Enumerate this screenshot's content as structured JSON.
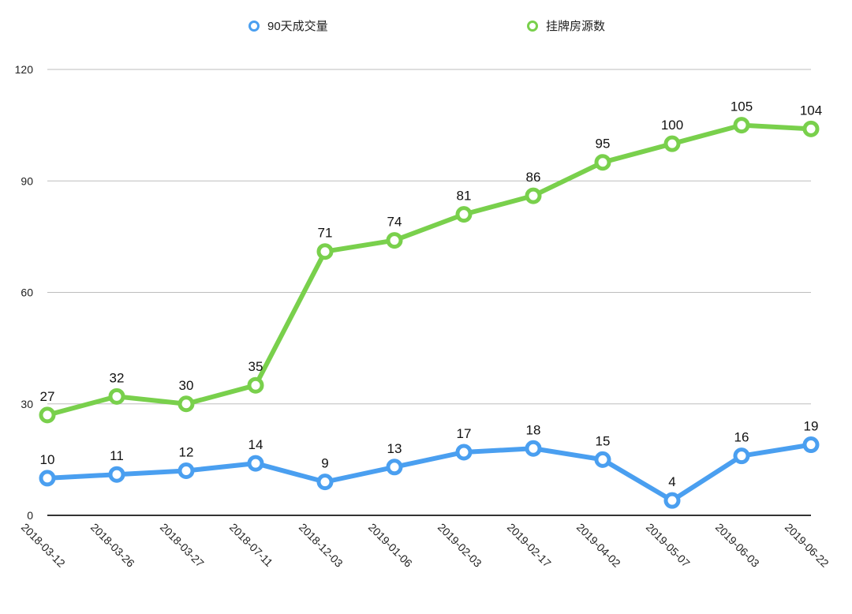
{
  "chart_data": {
    "type": "line",
    "title": "",
    "xlabel": "",
    "ylabel": "",
    "ylim": [
      0,
      120
    ],
    "yticks": [
      0,
      30,
      60,
      90,
      120
    ],
    "grid": true,
    "legend_position": "top",
    "categories": [
      "2018-03-12",
      "2018-03-26",
      "2018-03-27",
      "2018-07-11",
      "2018-12-03",
      "2019-01-06",
      "2019-02-03",
      "2019-02-17",
      "2019-04-02",
      "2019-05-07",
      "2019-06-03",
      "2019-06-22"
    ],
    "series": [
      {
        "name": "90天成交量",
        "color": "#4A9FF0",
        "values": [
          10,
          11,
          12,
          14,
          9,
          13,
          17,
          18,
          15,
          4,
          16,
          19
        ]
      },
      {
        "name": "挂牌房源数",
        "color": "#79D04C",
        "values": [
          27,
          32,
          30,
          35,
          71,
          74,
          81,
          86,
          95,
          100,
          105,
          104
        ]
      }
    ],
    "data_labels": true
  },
  "legend": {
    "items": [
      {
        "label": "90天成交量",
        "color": "#4A9FF0"
      },
      {
        "label": "挂牌房源数",
        "color": "#79D04C"
      }
    ]
  }
}
